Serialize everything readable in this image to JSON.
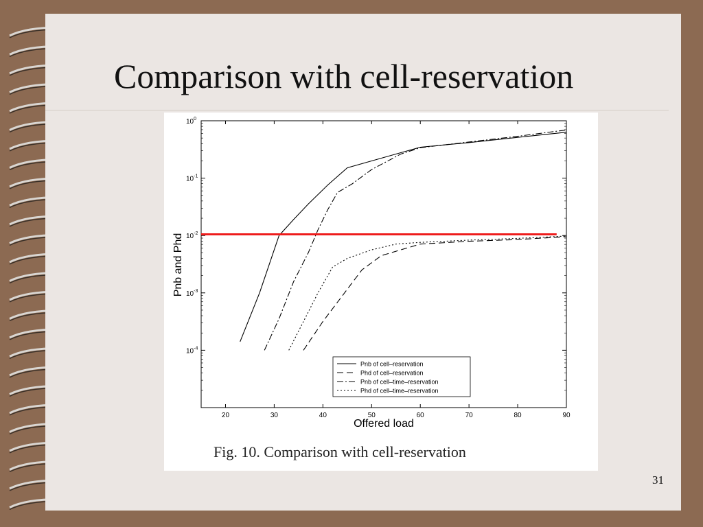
{
  "slide": {
    "title": "Comparison with cell-reservation",
    "page_number": "31",
    "colors": {
      "background": "#8c6a52",
      "slide": "#ebe6e3",
      "threshold": "#ee1c1c"
    },
    "decoration": "spiral-binding-rings"
  },
  "figure": {
    "caption": "Fig. 10. Comparison with cell-reservation"
  },
  "chart_data": {
    "type": "line",
    "xlabel": "Offered load",
    "ylabel": "Pnb and Phd",
    "xlim": [
      15,
      90
    ],
    "xticks": [
      "20",
      "30",
      "40",
      "50",
      "60",
      "70",
      "80",
      "90"
    ],
    "yscale": "log",
    "ylim_exponent": [
      -5,
      0
    ],
    "yticks": [
      {
        "exp": 0,
        "base": "10",
        "sup": "0"
      },
      {
        "exp": -1,
        "base": "10",
        "sup": "-1"
      },
      {
        "exp": -2,
        "base": "10",
        "sup": "-2"
      },
      {
        "exp": -3,
        "base": "10",
        "sup": "-3"
      },
      {
        "exp": -4,
        "base": "10",
        "sup": "-4"
      }
    ],
    "grid": false,
    "legend_position": "bottom-right",
    "series": [
      {
        "name": "Pnb of cell–reservation",
        "dash": "",
        "points": [
          [
            23,
            -3.85
          ],
          [
            27,
            -3.0
          ],
          [
            30,
            -2.25
          ],
          [
            31,
            -2.0
          ],
          [
            34,
            -1.72
          ],
          [
            37,
            -1.45
          ],
          [
            41,
            -1.12
          ],
          [
            45,
            -0.82
          ],
          [
            50,
            -0.7
          ],
          [
            55,
            -0.58
          ],
          [
            60,
            -0.46
          ],
          [
            70,
            -0.38
          ],
          [
            80,
            -0.29
          ],
          [
            90,
            -0.2
          ]
        ]
      },
      {
        "name": "Phd of cell–reservation",
        "dash": "9,5",
        "points": [
          [
            36,
            -4.0
          ],
          [
            40,
            -3.5
          ],
          [
            44,
            -3.05
          ],
          [
            48,
            -2.6
          ],
          [
            52,
            -2.35
          ],
          [
            56,
            -2.25
          ],
          [
            60,
            -2.15
          ],
          [
            70,
            -2.1
          ],
          [
            80,
            -2.07
          ],
          [
            90,
            -2.02
          ]
        ]
      },
      {
        "name": "Pnb of cell–time–reservation",
        "dash": "9,3,2,3",
        "points": [
          [
            28,
            -4.0
          ],
          [
            31,
            -3.45
          ],
          [
            34,
            -2.8
          ],
          [
            37,
            -2.3
          ],
          [
            39,
            -1.9
          ],
          [
            41,
            -1.55
          ],
          [
            43,
            -1.25
          ],
          [
            46,
            -1.1
          ],
          [
            50,
            -0.85
          ],
          [
            56,
            -0.58
          ],
          [
            60,
            -0.47
          ],
          [
            70,
            -0.37
          ],
          [
            80,
            -0.27
          ],
          [
            90,
            -0.16
          ]
        ]
      },
      {
        "name": "Phd of cell–time–reservation",
        "dash": "2,3",
        "points": [
          [
            33,
            -4.0
          ],
          [
            36,
            -3.5
          ],
          [
            39,
            -3.0
          ],
          [
            42,
            -2.55
          ],
          [
            45,
            -2.4
          ],
          [
            50,
            -2.25
          ],
          [
            55,
            -2.15
          ],
          [
            60,
            -2.12
          ],
          [
            70,
            -2.08
          ],
          [
            80,
            -2.05
          ],
          [
            90,
            -2.01
          ]
        ]
      }
    ],
    "threshold_line": {
      "x_from": 15,
      "x_to": 88,
      "y_exponent": -1.98,
      "color": "#ee1c1c"
    }
  }
}
